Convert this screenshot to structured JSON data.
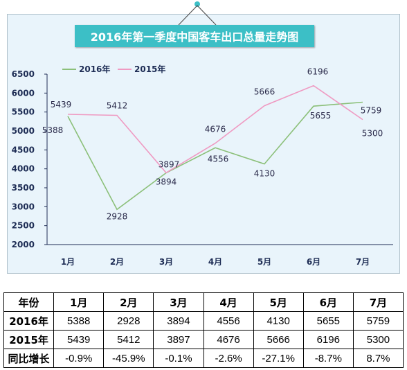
{
  "chart_data": {
    "type": "line",
    "title": "2016年第一季度中国客车出口总量走势图",
    "categories": [
      "1月",
      "2月",
      "3月",
      "4月",
      "5月",
      "6月",
      "7月"
    ],
    "series": [
      {
        "name": "2016年",
        "values": [
          5388,
          2928,
          3894,
          4556,
          4130,
          5655,
          5759
        ],
        "color": "#8cc07a"
      },
      {
        "name": "2015年",
        "values": [
          5439,
          5412,
          3897,
          4676,
          5666,
          6196,
          5300
        ],
        "color": "#ef9ac2"
      }
    ],
    "yticks": [
      "6500",
      "6000",
      "5500",
      "5000",
      "4500",
      "4000",
      "3500",
      "3000",
      "2500",
      "2000"
    ],
    "ylim": [
      2000,
      6500
    ],
    "grid": false,
    "legend": "top-left"
  },
  "table": {
    "header": [
      "年份",
      "1月",
      "2月",
      "3月",
      "4月",
      "5月",
      "6月",
      "7月"
    ],
    "rows": [
      [
        "2016年",
        "5388",
        "2928",
        "3894",
        "4556",
        "4130",
        "5655",
        "5759"
      ],
      [
        "2015年",
        "5439",
        "5412",
        "3897",
        "4676",
        "5666",
        "6196",
        "5300"
      ],
      [
        "同比增长",
        "-0.9%",
        "-45.9%",
        "-0.1%",
        "-2.6%",
        "-27.1%",
        "-8.7%",
        "8.7%"
      ]
    ]
  },
  "colors": {
    "title_bg": "#3cbfc6",
    "frame_bg": "#e9f4fb",
    "axis": "#1e2d55"
  }
}
